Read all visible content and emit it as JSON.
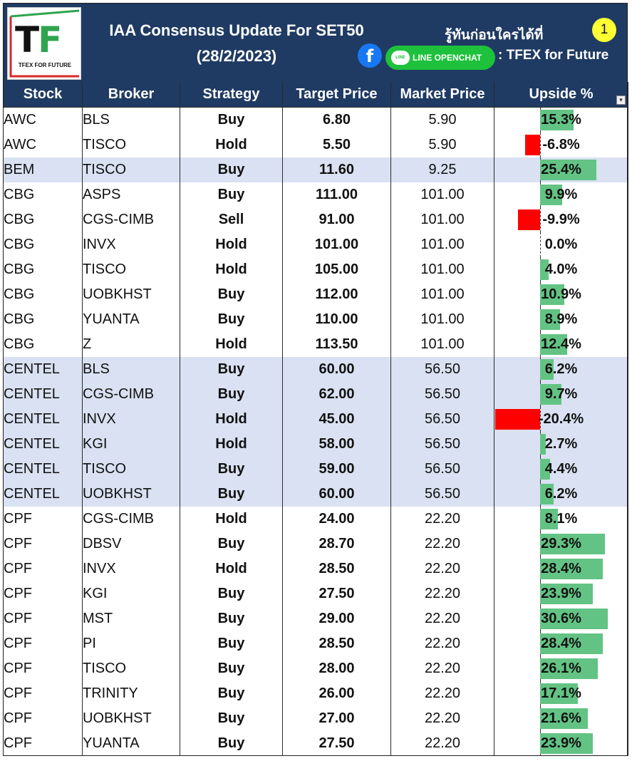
{
  "header": {
    "title_line1": "IAA Consensus Update For SET50",
    "title_line2": "(28/2/2023)",
    "tagline": "รู้ทันก่อนใครได้ที่",
    "page_number": "1",
    "line_label": "LINE OPENCHAT",
    "line_bubble": "LINE",
    "facebook_glyph": "f",
    "fan_page": ": TFEX for Future",
    "logo_letters": [
      "T",
      "F"
    ],
    "logo_subtitle": "TFEX FOR FUTURE",
    "colors": {
      "header_bg": "#1f3b63",
      "buy": "#1aa53a",
      "hold": "#f5b800",
      "sell": "#e00000",
      "bar_positive": "#63c384",
      "bar_negative": "#ff0000",
      "highlight_row": "#d9e1f2"
    }
  },
  "table": {
    "columns": [
      "Stock",
      "Broker",
      "Strategy",
      "Target Price",
      "Market Price",
      "Upside %"
    ],
    "filter_icon": "filter-dropdown-icon",
    "upside_axis_range": [
      -25,
      35
    ],
    "rows": [
      {
        "stock": "AWC",
        "broker": "BLS",
        "strategy": "Buy",
        "target": "6.80",
        "market": "5.90",
        "upside": "15.3%",
        "upside_value": 15.3,
        "highlight": false
      },
      {
        "stock": "AWC",
        "broker": "TISCO",
        "strategy": "Hold",
        "target": "5.50",
        "market": "5.90",
        "upside": "-6.8%",
        "upside_value": -6.8,
        "highlight": false
      },
      {
        "stock": "BEM",
        "broker": "TISCO",
        "strategy": "Buy",
        "target": "11.60",
        "market": "9.25",
        "upside": "25.4%",
        "upside_value": 25.4,
        "highlight": true
      },
      {
        "stock": "CBG",
        "broker": "ASPS",
        "strategy": "Buy",
        "target": "111.00",
        "market": "101.00",
        "upside": "9.9%",
        "upside_value": 9.9,
        "highlight": false
      },
      {
        "stock": "CBG",
        "broker": "CGS-CIMB",
        "strategy": "Sell",
        "target": "91.00",
        "market": "101.00",
        "upside": "-9.9%",
        "upside_value": -9.9,
        "highlight": false
      },
      {
        "stock": "CBG",
        "broker": "INVX",
        "strategy": "Hold",
        "target": "101.00",
        "market": "101.00",
        "upside": "0.0%",
        "upside_value": 0.0,
        "highlight": false
      },
      {
        "stock": "CBG",
        "broker": "TISCO",
        "strategy": "Hold",
        "target": "105.00",
        "market": "101.00",
        "upside": "4.0%",
        "upside_value": 4.0,
        "highlight": false
      },
      {
        "stock": "CBG",
        "broker": "UOBKHST",
        "strategy": "Buy",
        "target": "112.00",
        "market": "101.00",
        "upside": "10.9%",
        "upside_value": 10.9,
        "highlight": false
      },
      {
        "stock": "CBG",
        "broker": "YUANTA",
        "strategy": "Buy",
        "target": "110.00",
        "market": "101.00",
        "upside": "8.9%",
        "upside_value": 8.9,
        "highlight": false
      },
      {
        "stock": "CBG",
        "broker": "Z",
        "strategy": "Hold",
        "target": "113.50",
        "market": "101.00",
        "upside": "12.4%",
        "upside_value": 12.4,
        "highlight": false
      },
      {
        "stock": "CENTEL",
        "broker": "BLS",
        "strategy": "Buy",
        "target": "60.00",
        "market": "56.50",
        "upside": "6.2%",
        "upside_value": 6.2,
        "highlight": true
      },
      {
        "stock": "CENTEL",
        "broker": "CGS-CIMB",
        "strategy": "Buy",
        "target": "62.00",
        "market": "56.50",
        "upside": "9.7%",
        "upside_value": 9.7,
        "highlight": true
      },
      {
        "stock": "CENTEL",
        "broker": "INVX",
        "strategy": "Hold",
        "target": "45.00",
        "market": "56.50",
        "upside": "-20.4%",
        "upside_value": -20.4,
        "highlight": true
      },
      {
        "stock": "CENTEL",
        "broker": "KGI",
        "strategy": "Hold",
        "target": "58.00",
        "market": "56.50",
        "upside": "2.7%",
        "upside_value": 2.7,
        "highlight": true
      },
      {
        "stock": "CENTEL",
        "broker": "TISCO",
        "strategy": "Buy",
        "target": "59.00",
        "market": "56.50",
        "upside": "4.4%",
        "upside_value": 4.4,
        "highlight": true
      },
      {
        "stock": "CENTEL",
        "broker": "UOBKHST",
        "strategy": "Buy",
        "target": "60.00",
        "market": "56.50",
        "upside": "6.2%",
        "upside_value": 6.2,
        "highlight": true
      },
      {
        "stock": "CPF",
        "broker": "CGS-CIMB",
        "strategy": "Hold",
        "target": "24.00",
        "market": "22.20",
        "upside": "8.1%",
        "upside_value": 8.1,
        "highlight": false
      },
      {
        "stock": "CPF",
        "broker": "DBSV",
        "strategy": "Buy",
        "target": "28.70",
        "market": "22.20",
        "upside": "29.3%",
        "upside_value": 29.3,
        "highlight": false
      },
      {
        "stock": "CPF",
        "broker": "INVX",
        "strategy": "Hold",
        "target": "28.50",
        "market": "22.20",
        "upside": "28.4%",
        "upside_value": 28.4,
        "highlight": false
      },
      {
        "stock": "CPF",
        "broker": "KGI",
        "strategy": "Buy",
        "target": "27.50",
        "market": "22.20",
        "upside": "23.9%",
        "upside_value": 23.9,
        "highlight": false
      },
      {
        "stock": "CPF",
        "broker": "MST",
        "strategy": "Buy",
        "target": "29.00",
        "market": "22.20",
        "upside": "30.6%",
        "upside_value": 30.6,
        "highlight": false
      },
      {
        "stock": "CPF",
        "broker": "PI",
        "strategy": "Buy",
        "target": "28.50",
        "market": "22.20",
        "upside": "28.4%",
        "upside_value": 28.4,
        "highlight": false
      },
      {
        "stock": "CPF",
        "broker": "TISCO",
        "strategy": "Buy",
        "target": "28.00",
        "market": "22.20",
        "upside": "26.1%",
        "upside_value": 26.1,
        "highlight": false
      },
      {
        "stock": "CPF",
        "broker": "TRINITY",
        "strategy": "Buy",
        "target": "26.00",
        "market": "22.20",
        "upside": "17.1%",
        "upside_value": 17.1,
        "highlight": false
      },
      {
        "stock": "CPF",
        "broker": "UOBKHST",
        "strategy": "Buy",
        "target": "27.00",
        "market": "22.20",
        "upside": "21.6%",
        "upside_value": 21.6,
        "highlight": false
      },
      {
        "stock": "CPF",
        "broker": "YUANTA",
        "strategy": "Buy",
        "target": "27.50",
        "market": "22.20",
        "upside": "23.9%",
        "upside_value": 23.9,
        "highlight": false
      }
    ]
  }
}
